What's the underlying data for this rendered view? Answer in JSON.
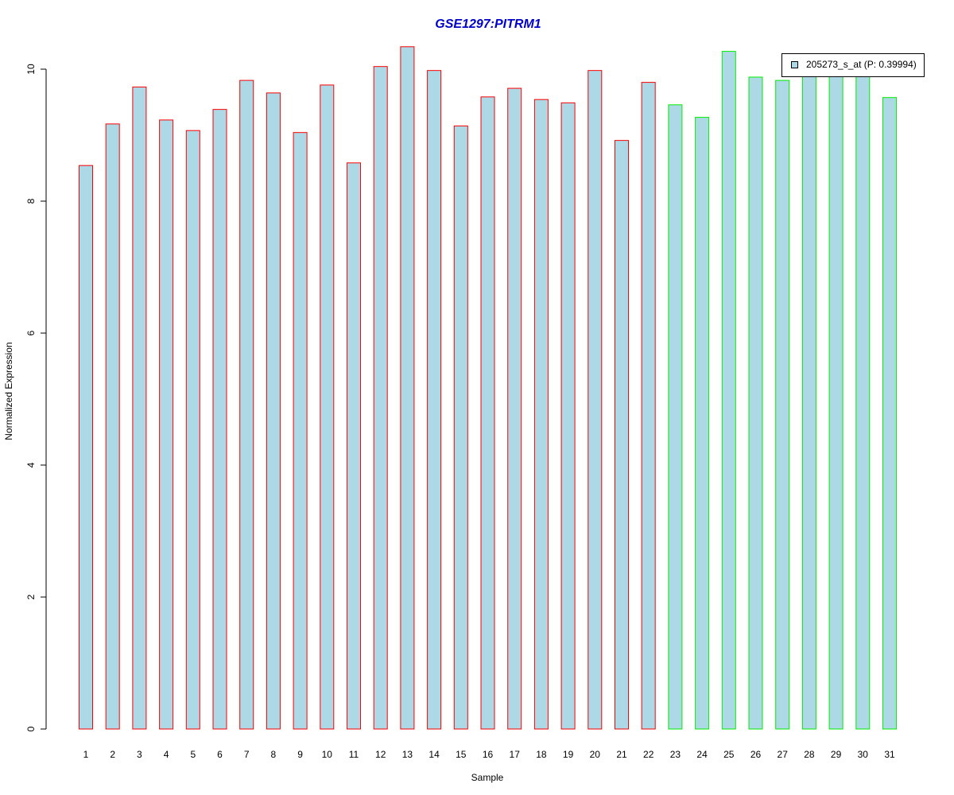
{
  "chart_data": {
    "type": "bar",
    "title": "GSE1297:PITRM1",
    "x_label": "Sample",
    "y_label": "Normalized Expression",
    "categories": [
      "1",
      "2",
      "3",
      "4",
      "5",
      "6",
      "7",
      "8",
      "9",
      "10",
      "11",
      "12",
      "13",
      "14",
      "15",
      "16",
      "17",
      "18",
      "19",
      "20",
      "21",
      "22",
      "23",
      "24",
      "25",
      "26",
      "27",
      "28",
      "29",
      "30",
      "31"
    ],
    "series": [
      {
        "name": "205273_s_at (P: 0.39994)",
        "color": "#add8e6",
        "values": [
          8.54,
          9.17,
          9.73,
          9.23,
          9.07,
          9.39,
          9.83,
          9.64,
          9.04,
          9.76,
          8.58,
          10.04,
          10.34,
          9.98,
          9.14,
          9.58,
          9.71,
          9.54,
          9.49,
          9.98,
          8.92,
          9.8,
          9.46,
          9.27,
          10.27,
          9.88,
          9.83,
          9.9,
          9.93,
          9.93,
          9.57
        ]
      }
    ],
    "border_colors": [
      "#ff0000",
      "#ff0000",
      "#ff0000",
      "#ff0000",
      "#ff0000",
      "#ff0000",
      "#ff0000",
      "#ff0000",
      "#ff0000",
      "#ff0000",
      "#ff0000",
      "#ff0000",
      "#ff0000",
      "#ff0000",
      "#ff0000",
      "#ff0000",
      "#ff0000",
      "#ff0000",
      "#ff0000",
      "#ff0000",
      "#ff0000",
      "#ff0000",
      "#00ee00",
      "#00ee00",
      "#00ee00",
      "#00ee00",
      "#00ee00",
      "#00ee00",
      "#00ee00",
      "#00ee00",
      "#00ee00"
    ],
    "ylim": [
      0,
      10.5
    ],
    "yticks": [
      0,
      2,
      4,
      6,
      8,
      10
    ],
    "legend_position": "top-right"
  }
}
